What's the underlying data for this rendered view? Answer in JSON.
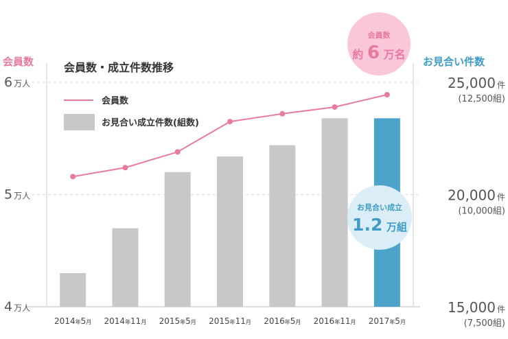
{
  "chart_data": {
    "type": "bar",
    "title": "会員数・成立件数推移",
    "categories": [
      "2014年5月",
      "2014年11月",
      "2015年5月",
      "2015年11月",
      "2016年5月",
      "2016年11月",
      "2017年5月"
    ],
    "category_parts": [
      {
        "year": "2014",
        "nen": "年",
        "month": "5",
        "tsuki": "月"
      },
      {
        "year": "2014",
        "nen": "年",
        "month": "11",
        "tsuki": "月"
      },
      {
        "year": "2015",
        "nen": "年",
        "month": "5",
        "tsuki": "月"
      },
      {
        "year": "2015",
        "nen": "年",
        "month": "11",
        "tsuki": "月"
      },
      {
        "year": "2016",
        "nen": "年",
        "month": "5",
        "tsuki": "月"
      },
      {
        "year": "2016",
        "nen": "年",
        "month": "11",
        "tsuki": "月"
      },
      {
        "year": "2017",
        "nen": "年",
        "month": "5",
        "tsuki": "月"
      }
    ],
    "series": [
      {
        "name": "会員数",
        "type": "line",
        "axis": "left",
        "unit": "人",
        "values": [
          51600,
          52400,
          53800,
          56500,
          57200,
          57800,
          58900
        ],
        "color": "#e8799f"
      },
      {
        "name": "お見合い成立件数(組数)",
        "type": "bar",
        "axis": "right",
        "unit": "件",
        "values": [
          16500,
          18500,
          21000,
          21700,
          22200,
          23400,
          23400
        ],
        "color": "#c8c8c8",
        "highlight_color": "#4ba3c9",
        "highlight_index": 6
      }
    ],
    "left_axis": {
      "label": "会員数",
      "range": [
        40000,
        60000
      ],
      "ticks": [
        {
          "value": 60000,
          "num": "6",
          "unit": "万人"
        },
        {
          "value": 50000,
          "num": "5",
          "unit": "万人"
        },
        {
          "value": 40000,
          "num": "4",
          "unit": "万人"
        }
      ]
    },
    "right_axis": {
      "label": "お見合い件数",
      "range": [
        15000,
        25000
      ],
      "ticks": [
        {
          "value": 25000,
          "num": "25,000",
          "unit": "件",
          "sub": "(12,500組)"
        },
        {
          "value": 20000,
          "num": "20,000",
          "unit": "件",
          "sub": "(10,000組)"
        },
        {
          "value": 15000,
          "num": "15,000",
          "unit": "件",
          "sub": "(7,500組)"
        }
      ]
    },
    "legend": [
      {
        "label": "会員数",
        "kind": "line",
        "color": "#e8799f"
      },
      {
        "label": "お見合い成立件数(組数)",
        "kind": "bar",
        "color": "#c8c8c8"
      }
    ],
    "legend_placement": "top-left",
    "grid": true,
    "annotations": [
      {
        "label": "会員数",
        "value_prefix": "約",
        "value": "6",
        "value_suffix": "万名",
        "color": "#f9c7d9",
        "text_color": "#e8799f"
      },
      {
        "label": "お見合い成立",
        "value": "1.2",
        "value_suffix": "万組",
        "color": "#dbedf6",
        "text_color": "#3d9cc6"
      }
    ]
  }
}
